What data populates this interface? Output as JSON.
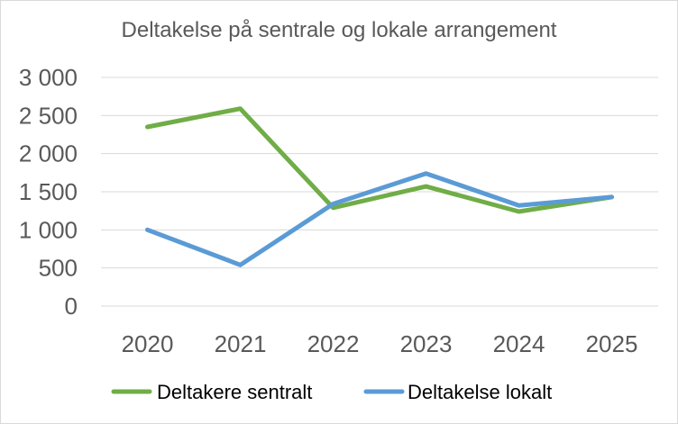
{
  "chart_data": {
    "type": "line",
    "title": "Deltakelse på sentrale og lokale arrangement",
    "categories": [
      "2020",
      "2021",
      "2022",
      "2023",
      "2024",
      "2025"
    ],
    "series": [
      {
        "name": "Deltakere sentralt",
        "values": [
          2350,
          2590,
          1290,
          1570,
          1240,
          1430
        ],
        "color": "#70ad47"
      },
      {
        "name": "Deltakelse lokalt",
        "values": [
          1000,
          540,
          1340,
          1740,
          1320,
          1430
        ],
        "color": "#5b9bd5"
      }
    ],
    "ylim": [
      0,
      3000
    ],
    "y_ticks": [
      {
        "value": 0,
        "label": "0"
      },
      {
        "value": 500,
        "label": "500"
      },
      {
        "value": 1000,
        "label": "1 000"
      },
      {
        "value": 1500,
        "label": "1 500"
      },
      {
        "value": 2000,
        "label": "2 000"
      },
      {
        "value": 2500,
        "label": "2 500"
      },
      {
        "value": 3000,
        "label": "3 000"
      }
    ],
    "grid": true,
    "legend_position": "bottom",
    "grid_color": "#d9d9d9"
  }
}
